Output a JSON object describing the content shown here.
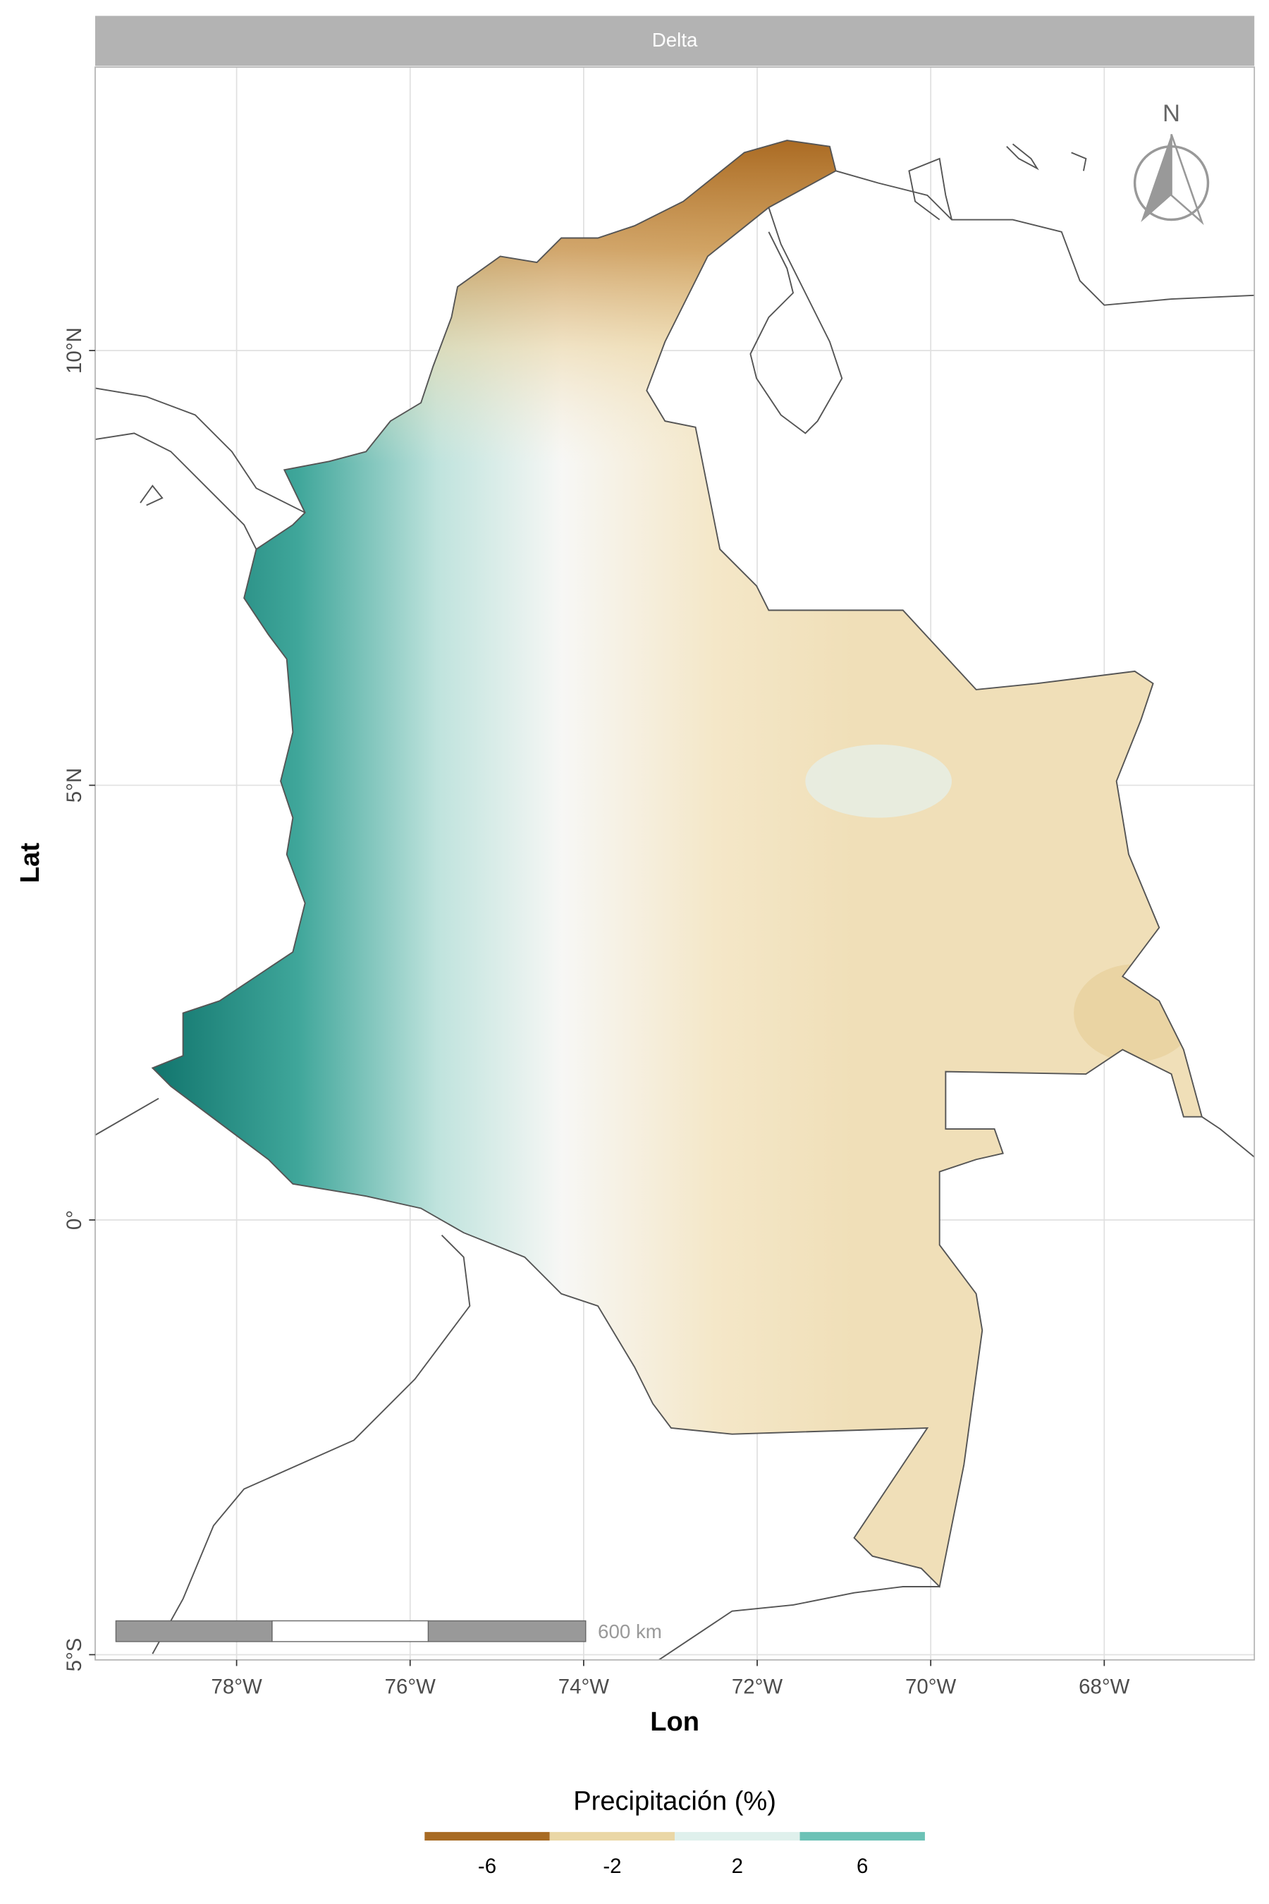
{
  "chart_data": {
    "type": "map",
    "facet": "Delta",
    "x_label": "Lon",
    "y_label": "Lat",
    "xlim": [
      -79.63,
      -66.27
    ],
    "ylim": [
      -5.06,
      13.26
    ],
    "xticks": [
      {
        "value": -78,
        "label": "78°W"
      },
      {
        "value": -76,
        "label": "76°W"
      },
      {
        "value": -74,
        "label": "74°W"
      },
      {
        "value": -72,
        "label": "72°W"
      },
      {
        "value": -70,
        "label": "70°W"
      },
      {
        "value": -68,
        "label": "68°W"
      }
    ],
    "yticks": [
      {
        "value": -5,
        "label": "5°S"
      },
      {
        "value": 0,
        "label": "0°"
      },
      {
        "value": 5,
        "label": "5°N"
      },
      {
        "value": 10,
        "label": "10°N"
      }
    ],
    "grid": true,
    "north_label": "N",
    "scale_bar_label": "600 km",
    "legend": {
      "title": "Precipitación (%)",
      "breaks": [
        -6,
        -2,
        2,
        6
      ],
      "colors": [
        "#a86b24",
        "#ead7a6",
        "#dff0ec",
        "#6cc2b6"
      ]
    }
  }
}
